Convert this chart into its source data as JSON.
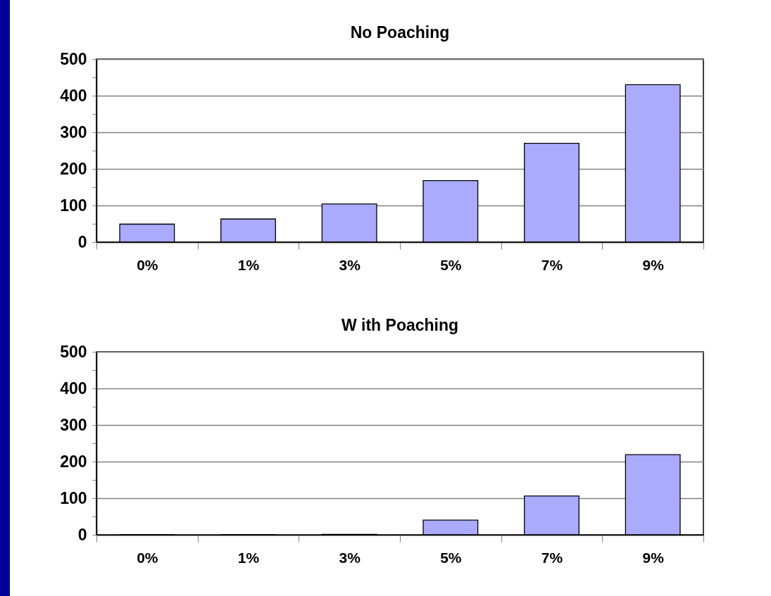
{
  "chart_data": [
    {
      "type": "bar",
      "title": "No Poaching",
      "categories": [
        "0%",
        "1%",
        "3%",
        "5%",
        "7%",
        "9%"
      ],
      "values": [
        49,
        63,
        104,
        168,
        270,
        430
      ],
      "color": "#aaaaff",
      "ylim": [
        0,
        500
      ],
      "yticks": [
        0,
        {
          "value": 50,
          "label": null
        },
        100,
        {
          "value": 150,
          "label": null
        },
        200,
        {
          "value": 250,
          "label": null
        },
        300,
        {
          "value": 350,
          "label": null
        },
        400,
        {
          "value": 450,
          "label": null
        },
        500
      ],
      "grid": "y"
    },
    {
      "type": "bar",
      "title": "W ith Poaching",
      "categories": [
        "0%",
        "1%",
        "3%",
        "5%",
        "7%",
        "9%"
      ],
      "values": [
        0,
        0,
        1,
        40,
        106,
        219
      ],
      "color": "#aaaaff",
      "ylim": [
        0,
        500
      ],
      "yticks": [
        0,
        {
          "value": 50,
          "label": null
        },
        100,
        {
          "value": 150,
          "label": null
        },
        200,
        {
          "value": 250,
          "label": null
        },
        300,
        {
          "value": 350,
          "label": null
        },
        400,
        {
          "value": 450,
          "label": null
        },
        500
      ],
      "grid": "y"
    }
  ]
}
